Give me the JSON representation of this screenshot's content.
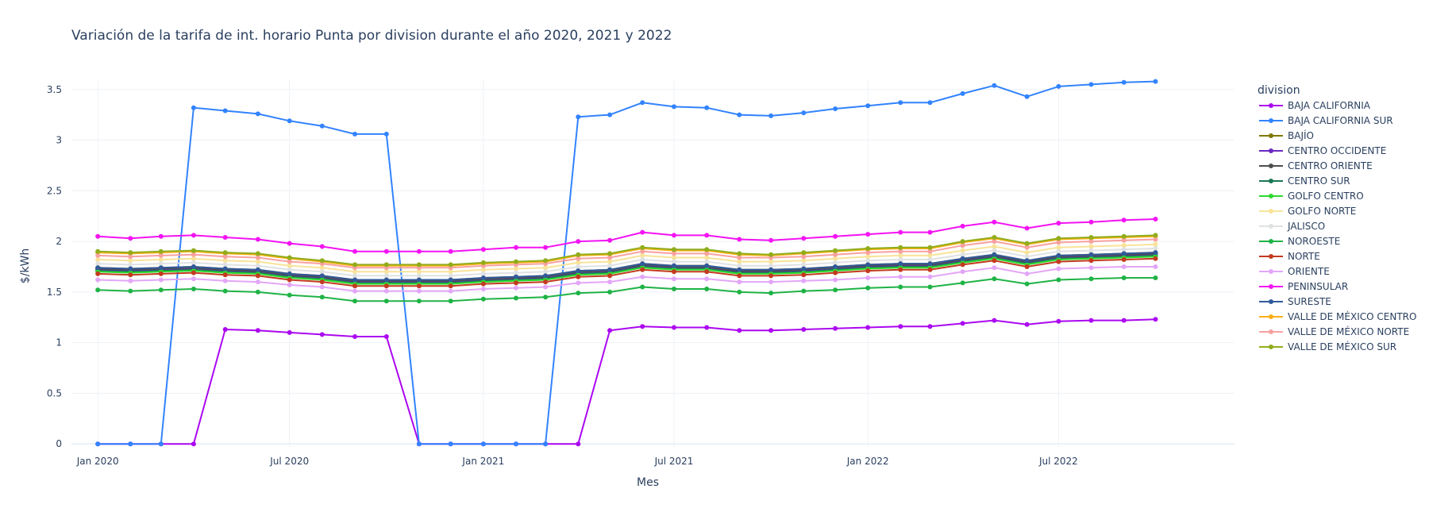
{
  "chart_data": {
    "type": "line",
    "title": "Variación de la tarifa de int. horario Punta por division durante el año 2020, 2021 y 2022",
    "xlabel": "Mes",
    "ylabel": "$/kWh",
    "legend_title": "division",
    "legend_position": "right",
    "grid": true,
    "ylim": [
      -0.03,
      3.6
    ],
    "xlim": [
      "2019-12-07",
      "2022-12-15"
    ],
    "x_ticks": [
      {
        "date": "2020-01-01",
        "label": "Jan 2020"
      },
      {
        "date": "2020-07-01",
        "label": "Jul 2020"
      },
      {
        "date": "2021-01-01",
        "label": "Jan 2021"
      },
      {
        "date": "2021-07-01",
        "label": "Jul 2021"
      },
      {
        "date": "2022-01-01",
        "label": "Jan 2022"
      },
      {
        "date": "2022-07-01",
        "label": "Jul 2022"
      }
    ],
    "y_ticks": [
      0,
      0.5,
      1,
      1.5,
      2,
      2.5,
      3,
      3.5
    ],
    "x": [
      "2020-01",
      "2020-02",
      "2020-03",
      "2020-04",
      "2020-05",
      "2020-06",
      "2020-07",
      "2020-08",
      "2020-09",
      "2020-10",
      "2020-11",
      "2020-12",
      "2021-01",
      "2021-02",
      "2021-03",
      "2021-04",
      "2021-05",
      "2021-06",
      "2021-07",
      "2021-08",
      "2021-09",
      "2021-10",
      "2021-11",
      "2021-12",
      "2022-01",
      "2022-02",
      "2022-03",
      "2022-04",
      "2022-05",
      "2022-06",
      "2022-07",
      "2022-08",
      "2022-09",
      "2022-10"
    ],
    "series": [
      {
        "name": "BAJA CALIFORNIA",
        "color": "#AB07F0",
        "values": [
          0,
          0,
          0,
          0,
          1.13,
          1.12,
          1.1,
          1.08,
          1.06,
          1.06,
          0,
          0,
          0,
          0,
          0,
          0,
          1.12,
          1.16,
          1.15,
          1.15,
          1.12,
          1.12,
          1.13,
          1.14,
          1.15,
          1.16,
          1.16,
          1.19,
          1.22,
          1.18,
          1.21,
          1.22,
          1.22,
          1.23
        ]
      },
      {
        "name": "BAJA CALIFORNIA SUR",
        "color": "#3283FE",
        "values": [
          0,
          0,
          0,
          3.32,
          3.29,
          3.26,
          3.19,
          3.14,
          3.06,
          3.06,
          0,
          0,
          0,
          0,
          0,
          3.23,
          3.25,
          3.37,
          3.33,
          3.32,
          3.25,
          3.24,
          3.27,
          3.31,
          3.34,
          3.37,
          3.37,
          3.46,
          3.54,
          3.43,
          3.53,
          3.55,
          3.57,
          3.58
        ]
      },
      {
        "name": "BAJÍO",
        "color": "#7F7800",
        "values": [
          1.74,
          1.73,
          1.74,
          1.75,
          1.73,
          1.72,
          1.68,
          1.66,
          1.62,
          1.62,
          1.62,
          1.62,
          1.64,
          1.65,
          1.66,
          1.71,
          1.72,
          1.78,
          1.76,
          1.76,
          1.72,
          1.72,
          1.73,
          1.75,
          1.77,
          1.78,
          1.78,
          1.83,
          1.87,
          1.81,
          1.86,
          1.87,
          1.88,
          1.89
        ]
      },
      {
        "name": "CENTRO OCCIDENTE",
        "color": "#6C27C2",
        "values": [
          1.72,
          1.71,
          1.72,
          1.73,
          1.71,
          1.7,
          1.66,
          1.64,
          1.6,
          1.6,
          1.6,
          1.6,
          1.62,
          1.63,
          1.64,
          1.69,
          1.7,
          1.76,
          1.74,
          1.74,
          1.7,
          1.7,
          1.71,
          1.73,
          1.75,
          1.76,
          1.76,
          1.81,
          1.85,
          1.79,
          1.84,
          1.85,
          1.86,
          1.87
        ]
      },
      {
        "name": "CENTRO ORIENTE",
        "color": "#4B4E4F",
        "values": [
          1.73,
          1.72,
          1.73,
          1.74,
          1.72,
          1.71,
          1.67,
          1.65,
          1.61,
          1.61,
          1.61,
          1.61,
          1.63,
          1.64,
          1.65,
          1.7,
          1.71,
          1.77,
          1.75,
          1.75,
          1.71,
          1.71,
          1.72,
          1.74,
          1.76,
          1.77,
          1.77,
          1.82,
          1.86,
          1.8,
          1.85,
          1.86,
          1.87,
          1.88
        ]
      },
      {
        "name": "CENTRO SUR",
        "color": "#1A7855",
        "values": [
          1.71,
          1.7,
          1.71,
          1.72,
          1.7,
          1.69,
          1.65,
          1.63,
          1.59,
          1.59,
          1.59,
          1.59,
          1.61,
          1.62,
          1.63,
          1.68,
          1.69,
          1.75,
          1.73,
          1.73,
          1.69,
          1.69,
          1.7,
          1.72,
          1.74,
          1.75,
          1.75,
          1.8,
          1.84,
          1.78,
          1.83,
          1.84,
          1.85,
          1.86
        ]
      },
      {
        "name": "GOLFO CENTRO",
        "color": "#2ED930",
        "values": [
          1.7,
          1.69,
          1.7,
          1.71,
          1.69,
          1.68,
          1.64,
          1.62,
          1.58,
          1.58,
          1.58,
          1.58,
          1.6,
          1.61,
          1.62,
          1.67,
          1.68,
          1.74,
          1.72,
          1.72,
          1.68,
          1.68,
          1.69,
          1.71,
          1.73,
          1.74,
          1.74,
          1.79,
          1.83,
          1.77,
          1.82,
          1.83,
          1.84,
          1.85
        ]
      },
      {
        "name": "GOLFO NORTE",
        "color": "#F8E399",
        "values": [
          1.82,
          1.81,
          1.82,
          1.83,
          1.81,
          1.8,
          1.76,
          1.74,
          1.7,
          1.7,
          1.7,
          1.7,
          1.72,
          1.73,
          1.74,
          1.79,
          1.8,
          1.86,
          1.84,
          1.84,
          1.8,
          1.8,
          1.81,
          1.83,
          1.85,
          1.86,
          1.86,
          1.91,
          1.95,
          1.89,
          1.94,
          1.95,
          1.96,
          1.97
        ]
      },
      {
        "name": "JALISCO",
        "color": "#DFE1E2",
        "values": [
          1.78,
          1.77,
          1.78,
          1.79,
          1.77,
          1.76,
          1.72,
          1.7,
          1.66,
          1.66,
          1.66,
          1.66,
          1.68,
          1.69,
          1.7,
          1.75,
          1.76,
          1.82,
          1.8,
          1.8,
          1.76,
          1.76,
          1.77,
          1.79,
          1.81,
          1.82,
          1.82,
          1.87,
          1.91,
          1.85,
          1.9,
          1.91,
          1.92,
          1.93
        ]
      },
      {
        "name": "NOROESTE",
        "color": "#1FB345",
        "values": [
          1.52,
          1.51,
          1.52,
          1.53,
          1.51,
          1.5,
          1.47,
          1.45,
          1.41,
          1.41,
          1.41,
          1.41,
          1.43,
          1.44,
          1.45,
          1.49,
          1.5,
          1.55,
          1.53,
          1.53,
          1.5,
          1.49,
          1.51,
          1.52,
          1.54,
          1.55,
          1.55,
          1.59,
          1.63,
          1.58,
          1.62,
          1.63,
          1.64,
          1.64
        ]
      },
      {
        "name": "NORTE",
        "color": "#C33A1F",
        "values": [
          1.68,
          1.67,
          1.68,
          1.69,
          1.67,
          1.66,
          1.62,
          1.6,
          1.56,
          1.56,
          1.56,
          1.56,
          1.58,
          1.59,
          1.6,
          1.65,
          1.66,
          1.72,
          1.7,
          1.7,
          1.66,
          1.66,
          1.67,
          1.69,
          1.71,
          1.72,
          1.72,
          1.77,
          1.81,
          1.75,
          1.8,
          1.81,
          1.82,
          1.83
        ]
      },
      {
        "name": "ORIENTE",
        "color": "#E3A6F7",
        "values": [
          1.62,
          1.61,
          1.62,
          1.63,
          1.61,
          1.6,
          1.57,
          1.55,
          1.51,
          1.51,
          1.51,
          1.51,
          1.53,
          1.54,
          1.55,
          1.59,
          1.6,
          1.65,
          1.63,
          1.63,
          1.6,
          1.6,
          1.61,
          1.62,
          1.64,
          1.65,
          1.65,
          1.7,
          1.74,
          1.68,
          1.73,
          1.74,
          1.75,
          1.75
        ]
      },
      {
        "name": "PENINSULAR",
        "color": "#F313F3",
        "values": [
          2.05,
          2.03,
          2.05,
          2.06,
          2.04,
          2.02,
          1.98,
          1.95,
          1.9,
          1.9,
          1.9,
          1.9,
          1.92,
          1.94,
          1.94,
          2.0,
          2.01,
          2.09,
          2.06,
          2.06,
          2.02,
          2.01,
          2.03,
          2.05,
          2.07,
          2.09,
          2.09,
          2.15,
          2.19,
          2.13,
          2.18,
          2.19,
          2.21,
          2.22
        ]
      },
      {
        "name": "SURESTE",
        "color": "#325A9B",
        "values": [
          1.74,
          1.73,
          1.74,
          1.75,
          1.73,
          1.72,
          1.68,
          1.66,
          1.62,
          1.62,
          1.62,
          1.62,
          1.64,
          1.65,
          1.66,
          1.71,
          1.72,
          1.78,
          1.76,
          1.76,
          1.72,
          1.72,
          1.73,
          1.75,
          1.77,
          1.78,
          1.78,
          1.83,
          1.87,
          1.81,
          1.86,
          1.87,
          1.88,
          1.89
        ]
      },
      {
        "name": "VALLE DE MÉXICO CENTRO",
        "color": "#FEAF16",
        "values": [
          1.89,
          1.88,
          1.89,
          1.9,
          1.88,
          1.87,
          1.83,
          1.8,
          1.76,
          1.76,
          1.76,
          1.76,
          1.78,
          1.79,
          1.8,
          1.86,
          1.87,
          1.93,
          1.91,
          1.91,
          1.87,
          1.86,
          1.88,
          1.9,
          1.92,
          1.93,
          1.93,
          1.99,
          2.03,
          1.97,
          2.02,
          2.03,
          2.04,
          2.05
        ]
      },
      {
        "name": "VALLE DE MÉXICO NORTE",
        "color": "#F8A19F",
        "values": [
          1.86,
          1.85,
          1.86,
          1.87,
          1.85,
          1.84,
          1.8,
          1.78,
          1.74,
          1.74,
          1.74,
          1.74,
          1.76,
          1.77,
          1.78,
          1.83,
          1.84,
          1.9,
          1.88,
          1.88,
          1.84,
          1.84,
          1.85,
          1.87,
          1.89,
          1.9,
          1.9,
          1.96,
          2.0,
          1.94,
          1.99,
          2.0,
          2.01,
          2.02
        ]
      },
      {
        "name": "VALLE DE MÉXICO SUR",
        "color": "#90AD1C",
        "values": [
          1.9,
          1.89,
          1.9,
          1.91,
          1.89,
          1.88,
          1.84,
          1.81,
          1.77,
          1.77,
          1.77,
          1.77,
          1.79,
          1.8,
          1.81,
          1.87,
          1.88,
          1.94,
          1.92,
          1.92,
          1.88,
          1.87,
          1.89,
          1.91,
          1.93,
          1.94,
          1.94,
          2.0,
          2.04,
          1.98,
          2.03,
          2.04,
          2.05,
          2.06
        ]
      }
    ]
  }
}
